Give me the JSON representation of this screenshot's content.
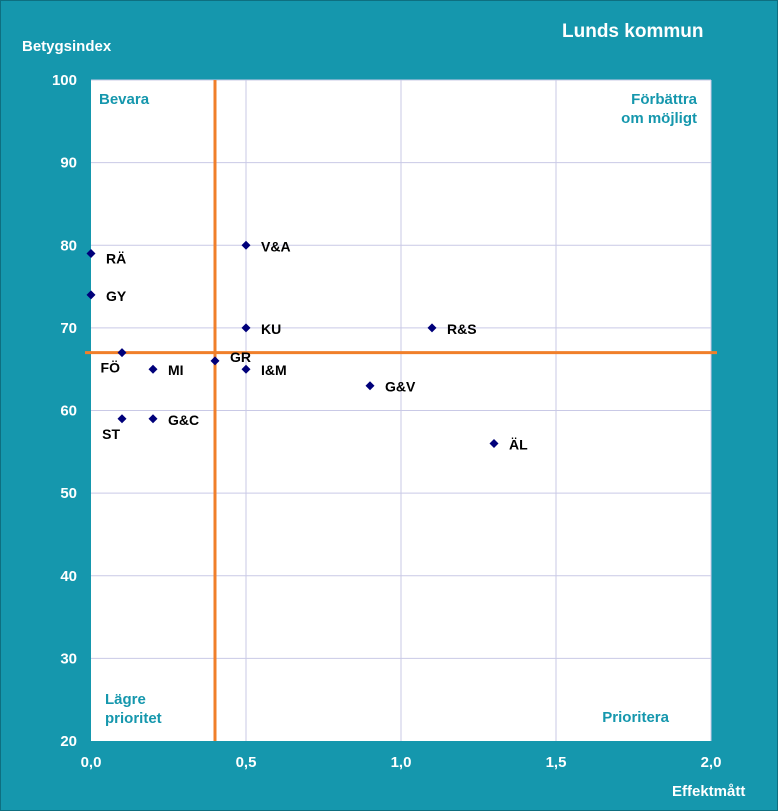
{
  "chart_data": {
    "type": "scatter",
    "title": "Lunds kommun",
    "xlabel": "Effektmått",
    "ylabel": "Betygsindex",
    "xlim": [
      0,
      2
    ],
    "ylim": [
      20,
      100
    ],
    "x_ticks": [
      "0,0",
      "0,5",
      "1,0",
      "1,5",
      "2,0"
    ],
    "y_ticks": [
      "20",
      "30",
      "40",
      "50",
      "60",
      "70",
      "80",
      "90",
      "100"
    ],
    "grid": true,
    "reference_lines": {
      "x": 0.4,
      "y": 67
    },
    "quadrants": {
      "top_left": [
        "Bevara"
      ],
      "top_right": [
        "Förbättra",
        "om möjligt"
      ],
      "bottom_left": [
        "Lägre",
        "prioritet"
      ],
      "bottom_right": [
        "Prioritera"
      ]
    },
    "points": [
      {
        "label": "RÄ",
        "x": 0.0,
        "y": 79,
        "pos": "right-below"
      },
      {
        "label": "GY",
        "x": 0.0,
        "y": 74,
        "pos": "right"
      },
      {
        "label": "FÖ",
        "x": 0.1,
        "y": 67,
        "pos": "left-below"
      },
      {
        "label": "ST",
        "x": 0.1,
        "y": 59,
        "pos": "left-below"
      },
      {
        "label": "MI",
        "x": 0.2,
        "y": 65,
        "pos": "right"
      },
      {
        "label": "G&C",
        "x": 0.2,
        "y": 59,
        "pos": "right"
      },
      {
        "label": "GR",
        "x": 0.4,
        "y": 66,
        "pos": "right-above"
      },
      {
        "label": "V&A",
        "x": 0.5,
        "y": 80,
        "pos": "right"
      },
      {
        "label": "KU",
        "x": 0.5,
        "y": 70,
        "pos": "right"
      },
      {
        "label": "I&M",
        "x": 0.5,
        "y": 65,
        "pos": "right"
      },
      {
        "label": "G&V",
        "x": 0.9,
        "y": 63,
        "pos": "right"
      },
      {
        "label": "R&S",
        "x": 1.1,
        "y": 70,
        "pos": "right"
      },
      {
        "label": "ÄL",
        "x": 1.3,
        "y": 56,
        "pos": "right"
      }
    ],
    "colors": {
      "background": "#1597ad",
      "plot_area": "#ffffff",
      "grid": "#c9c9e6",
      "reference_line": "#f07f2a",
      "marker": "#00007a",
      "quadrant_text": "#1597ad"
    }
  }
}
